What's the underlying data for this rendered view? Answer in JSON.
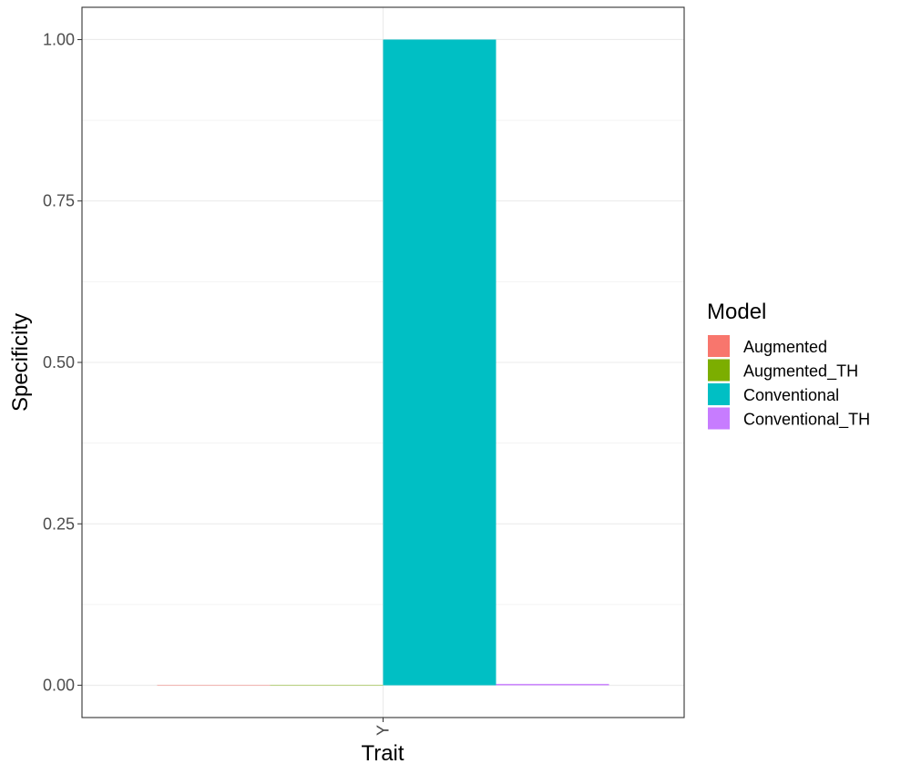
{
  "chart_data": {
    "type": "bar",
    "categories": [
      "Y"
    ],
    "series": [
      {
        "name": "Augmented",
        "values": [
          0.0
        ],
        "color": "#F8766D"
      },
      {
        "name": "Augmented_TH",
        "values": [
          0.0
        ],
        "color": "#7CAE00"
      },
      {
        "name": "Conventional",
        "values": [
          1.0
        ],
        "color": "#00BFC4"
      },
      {
        "name": "Conventional_TH",
        "values": [
          0.002
        ],
        "color": "#C77CFF"
      }
    ],
    "xlabel": "Trait",
    "ylabel": "Specificity",
    "ylim": [
      -0.05,
      1.05
    ],
    "yticks": [
      "0.00",
      "0.25",
      "0.50",
      "0.75",
      "1.00"
    ],
    "grid": true,
    "legend": {
      "title": "Model",
      "position": "right"
    }
  }
}
